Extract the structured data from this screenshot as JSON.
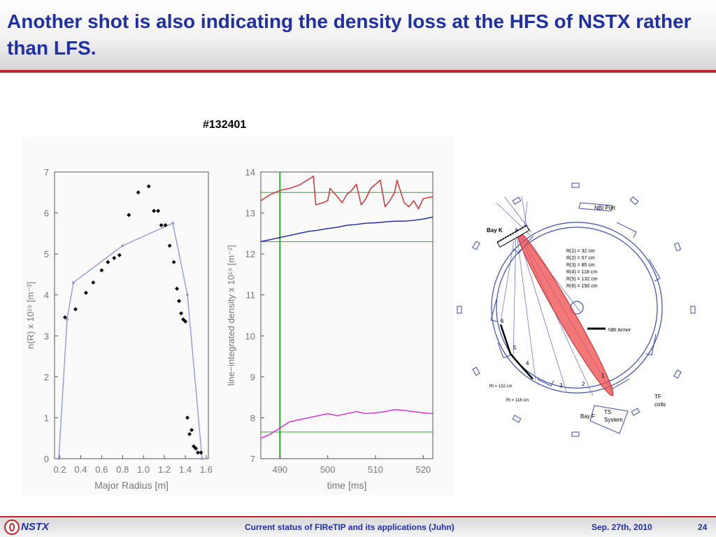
{
  "slide": {
    "title": "Another shot is also indicating the density loss at the HFS of NSTX rather than LFS.",
    "shot_label": "#132401",
    "footer": {
      "logo_text": "NSTX",
      "center": "Current status of FIReTIP and its applications (Juhn)",
      "date": "Sep. 27th, 2010",
      "page": "24"
    }
  },
  "colors": {
    "title": "#1f2fa8",
    "accent_red": "#c0272d",
    "profile_line": "#8a93d8",
    "trace_red": "#d22a2a",
    "trace_blue": "#1a22b0",
    "trace_magenta": "#e022d8",
    "ref_green": "#22b022",
    "chord_fill": "#ee4a4a",
    "diagram_line": "#3a4ab5"
  },
  "chart_data": [
    {
      "type": "line",
      "xlabel": "Major Radius [m]",
      "ylabel": "n(R) x 10¹⁹ [m⁻³]",
      "xlim": [
        0.15,
        1.62
      ],
      "ylim": [
        0,
        7
      ],
      "xticks": [
        "0.2",
        "0.4",
        "0.6",
        "0.8",
        "1.0",
        "1.2",
        "1.4",
        "1.6"
      ],
      "yticks": [
        "0",
        "1",
        "2",
        "3",
        "4",
        "5",
        "6",
        "7"
      ],
      "series": [
        {
          "kind": "scatter",
          "x": [
            0.25,
            0.35,
            0.45,
            0.52,
            0.6,
            0.66,
            0.72,
            0.77,
            0.86,
            0.95,
            1.05,
            1.1,
            1.14,
            1.17,
            1.21,
            1.25,
            1.29,
            1.32,
            1.34,
            1.36,
            1.38,
            1.4,
            1.42,
            1.44,
            1.46,
            1.48,
            1.5,
            1.52,
            1.55
          ],
          "y": [
            3.45,
            3.65,
            4.05,
            4.3,
            4.6,
            4.8,
            4.9,
            4.97,
            5.95,
            6.5,
            6.65,
            6.05,
            6.05,
            5.7,
            5.7,
            5.2,
            4.8,
            4.15,
            3.85,
            3.55,
            3.4,
            3.35,
            1.0,
            0.6,
            0.7,
            0.3,
            0.25,
            0.15,
            0.15
          ]
        },
        {
          "kind": "line",
          "x": [
            0.19,
            0.27,
            0.33,
            0.8,
            1.28,
            1.42,
            1.56
          ],
          "y": [
            0.0,
            3.4,
            4.3,
            5.2,
            5.75,
            4.0,
            0.0
          ]
        }
      ]
    },
    {
      "type": "line",
      "xlabel": "time [ms]",
      "ylabel": "line−integrated density x 10¹⁹ [m⁻²]",
      "xlim": [
        486,
        522
      ],
      "ylim": [
        7,
        14
      ],
      "xticks": [
        "490",
        "500",
        "510",
        "520"
      ],
      "yticks": [
        "7",
        "8",
        "9",
        "10",
        "11",
        "12",
        "13",
        "14"
      ],
      "reference_vertical_x": 490,
      "reference_horizontal_y": [
        13.5,
        12.3,
        7.65
      ],
      "series": [
        {
          "kind": "line",
          "x": [
            486,
            488,
            490,
            492,
            494,
            495,
            496,
            497,
            497.5,
            499,
            500,
            500.5,
            502,
            503,
            504,
            505,
            506,
            507,
            508,
            509,
            510,
            511,
            512,
            513,
            514,
            514.5,
            516,
            517,
            518,
            519,
            520,
            522
          ],
          "y": [
            13.3,
            13.45,
            13.55,
            13.6,
            13.68,
            13.75,
            13.82,
            13.9,
            13.2,
            13.25,
            13.3,
            13.6,
            13.4,
            13.25,
            13.45,
            13.55,
            13.7,
            13.2,
            13.35,
            13.6,
            13.7,
            13.8,
            13.15,
            13.3,
            13.5,
            13.8,
            13.25,
            13.15,
            13.3,
            13.1,
            13.35,
            13.4
          ]
        },
        {
          "kind": "line",
          "x": [
            486,
            488,
            490,
            492,
            494,
            496,
            498,
            500,
            502,
            504,
            506,
            508,
            510,
            512,
            514,
            516,
            518,
            520,
            522
          ],
          "y": [
            12.3,
            12.35,
            12.4,
            12.45,
            12.5,
            12.55,
            12.58,
            12.62,
            12.65,
            12.7,
            12.72,
            12.75,
            12.76,
            12.78,
            12.8,
            12.8,
            12.82,
            12.85,
            12.9
          ]
        },
        {
          "kind": "line",
          "x": [
            486,
            488,
            490,
            492,
            494,
            496,
            498,
            500,
            502,
            504,
            506,
            508,
            510,
            512,
            514,
            516,
            518,
            520,
            522
          ],
          "y": [
            7.5,
            7.6,
            7.75,
            7.9,
            7.95,
            8.0,
            8.05,
            8.1,
            8.05,
            8.1,
            8.15,
            8.1,
            8.12,
            8.15,
            8.2,
            8.18,
            8.15,
            8.12,
            8.1
          ]
        }
      ]
    }
  ],
  "diagram": {
    "labels": {
      "nbi_port": "NBI Port",
      "bay_k": "Bay K",
      "bay_f": "Bay F",
      "nbi_armor": "NBI Armor",
      "ts": "TS",
      "ts_system": "System",
      "tf": "TF",
      "tf_coils": "coils",
      "rt132": "Rt = 132 cm",
      "rt118": "Rt = 118 cm"
    },
    "radii": [
      "R(1) = 32 cm",
      "R(2) = 57 cm",
      "R(3) = 85 cm",
      "R(4) = 118 cm",
      "R(5) = 132 cm",
      "R(6) = 150 cm"
    ],
    "chord_numbers": [
      "1",
      "2",
      "3",
      "4",
      "5",
      "6"
    ]
  }
}
